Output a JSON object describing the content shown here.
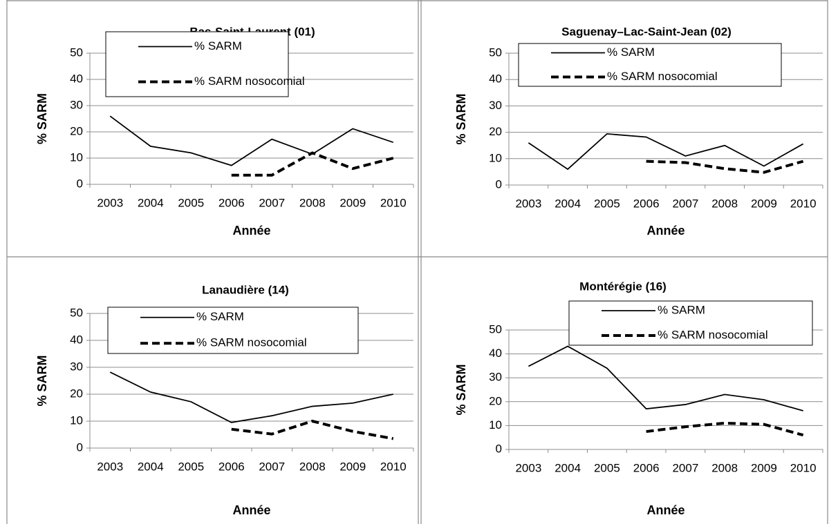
{
  "chart_data": [
    {
      "type": "line",
      "title": "Bas-Saint-Laurent (01)",
      "y_label": "% SARM",
      "x_label": "Année",
      "categories": [
        "2003",
        "2004",
        "2005",
        "2006",
        "2007",
        "2008",
        "2009",
        "2010"
      ],
      "ylim": [
        0,
        50
      ],
      "yticks": [
        0,
        10,
        20,
        30,
        40,
        50
      ],
      "grid": true,
      "series": [
        {
          "name": "% SARM",
          "color": "#000000",
          "style": "solid",
          "values": [
            26,
            14.5,
            12,
            7.2,
            17.2,
            11.5,
            21.2,
            16
          ]
        },
        {
          "name": "% SARM nosocomial",
          "color": "#000000",
          "style": "dashed",
          "values": [
            null,
            null,
            null,
            3.5,
            3.5,
            12,
            6,
            10
          ]
        }
      ]
    },
    {
      "type": "line",
      "title": "Saguenay–Lac-Saint-Jean (02)",
      "y_label": "% SARM",
      "x_label": "Année",
      "categories": [
        "2003",
        "2004",
        "2005",
        "2006",
        "2007",
        "2008",
        "2009",
        "2010"
      ],
      "ylim": [
        0,
        50
      ],
      "yticks": [
        0,
        10,
        20,
        30,
        40,
        50
      ],
      "grid": true,
      "series": [
        {
          "name": "% SARM",
          "color": "#000000",
          "style": "solid",
          "values": [
            16,
            6,
            19.4,
            18.2,
            11,
            15,
            7.2,
            15.6
          ]
        },
        {
          "name": "% SARM nosocomial",
          "color": "#000000",
          "style": "dashed",
          "values": [
            null,
            null,
            null,
            9,
            8.5,
            6.2,
            4.8,
            9
          ]
        }
      ]
    },
    {
      "type": "line",
      "title": "Lanaudière (14)",
      "y_label": "% SARM",
      "x_label": "Année",
      "categories": [
        "2003",
        "2004",
        "2005",
        "2006",
        "2007",
        "2008",
        "2009",
        "2010"
      ],
      "ylim": [
        0,
        50
      ],
      "yticks": [
        0,
        10,
        20,
        30,
        40,
        50
      ],
      "grid": true,
      "series": [
        {
          "name": "% SARM",
          "color": "#000000",
          "style": "solid",
          "values": [
            28.2,
            20.8,
            17.2,
            9.5,
            12,
            15.5,
            16.7,
            20
          ]
        },
        {
          "name": "% SARM nosocomial",
          "color": "#000000",
          "style": "dashed",
          "values": [
            null,
            null,
            null,
            7,
            5.2,
            10,
            6.2,
            3.5
          ]
        }
      ]
    },
    {
      "type": "line",
      "title": "Montérégie (16)",
      "y_label": "% SARM",
      "x_label": "Année",
      "categories": [
        "2003",
        "2004",
        "2005",
        "2006",
        "2007",
        "2008",
        "2009",
        "2010"
      ],
      "ylim": [
        0,
        50
      ],
      "yticks": [
        0,
        10,
        20,
        30,
        40,
        50
      ],
      "grid": true,
      "series": [
        {
          "name": "% SARM",
          "color": "#000000",
          "style": "solid",
          "values": [
            34.8,
            43.2,
            34,
            17,
            18.8,
            23,
            20.8,
            16.2
          ]
        },
        {
          "name": "% SARM nosocomial",
          "color": "#000000",
          "style": "dashed",
          "values": [
            null,
            null,
            null,
            7.5,
            9.5,
            11,
            10.5,
            6
          ]
        }
      ]
    }
  ]
}
